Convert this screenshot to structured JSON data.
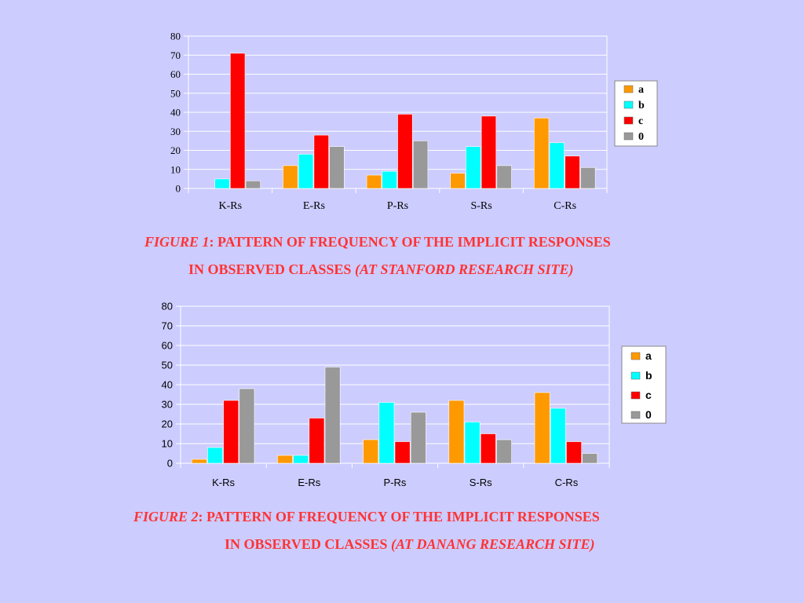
{
  "chart_data": [
    {
      "type": "bar",
      "categories": [
        "K-Rs",
        "E-Rs",
        "P-Rs",
        "S-Rs",
        "C-Rs"
      ],
      "series": [
        {
          "name": "a",
          "values": [
            0,
            12,
            7,
            8,
            37
          ]
        },
        {
          "name": "b",
          "values": [
            5,
            18,
            9,
            22,
            24
          ]
        },
        {
          "name": "c",
          "values": [
            71,
            28,
            39,
            38,
            17
          ]
        },
        {
          "name": "0",
          "values": [
            4,
            22,
            25,
            12,
            11
          ]
        }
      ],
      "ylim": [
        0,
        80
      ],
      "yticks": [
        0,
        10,
        20,
        30,
        40,
        50,
        60,
        70,
        80
      ],
      "grid": true,
      "legend": "right",
      "caption": {
        "label": "FIGURE 1",
        "line1": ": PATTERN OF FREQUENCY OF THE IMPLICIT RESPONSES",
        "line2": "IN OBSERVED CLASSES ",
        "site": "(AT STANFORD RESEARCH SITE)"
      }
    },
    {
      "type": "bar",
      "categories": [
        "K-Rs",
        "E-Rs",
        "P-Rs",
        "S-Rs",
        "C-Rs"
      ],
      "series": [
        {
          "name": "a",
          "values": [
            2,
            4,
            12,
            32,
            36
          ]
        },
        {
          "name": "b",
          "values": [
            8,
            4,
            31,
            21,
            28
          ]
        },
        {
          "name": "c",
          "values": [
            32,
            23,
            11,
            15,
            11
          ]
        },
        {
          "name": "0",
          "values": [
            38,
            49,
            26,
            12,
            5
          ]
        }
      ],
      "ylim": [
        0,
        80
      ],
      "yticks": [
        0,
        10,
        20,
        30,
        40,
        50,
        60,
        70,
        80
      ],
      "grid": true,
      "legend": "right",
      "caption": {
        "label": "FIGURE 2",
        "line1": ": PATTERN OF FREQUENCY OF THE IMPLICIT RESPONSES",
        "line2": "IN OBSERVED CLASSES ",
        "site": "(AT DANANG RESEARCH SITE)"
      }
    }
  ],
  "colors": {
    "a": "#ff9900",
    "b": "#00ffff",
    "c": "#ff0000",
    "0": "#999999",
    "caption": "#ff3333",
    "background": "#ccccff"
  }
}
